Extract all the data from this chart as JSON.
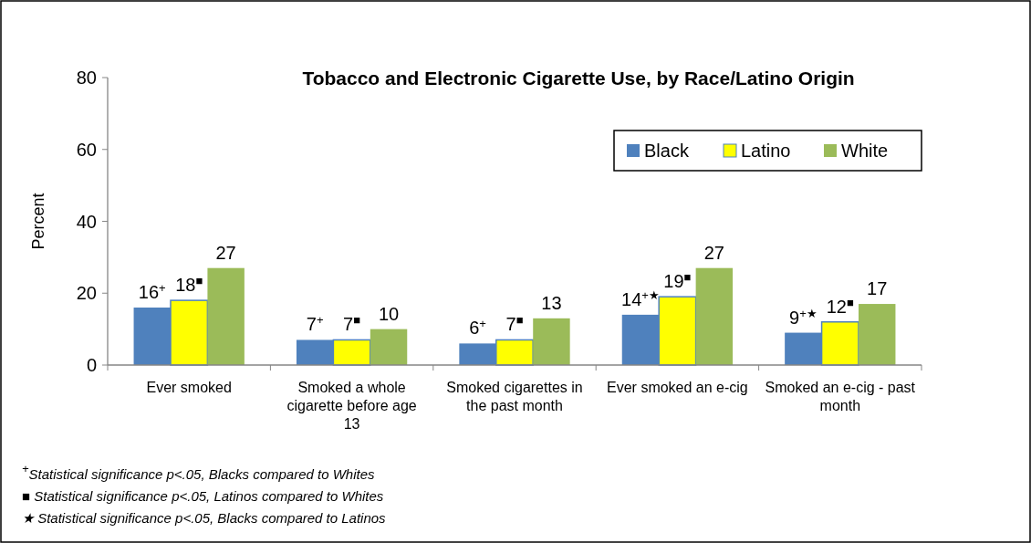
{
  "chart_data": {
    "type": "bar",
    "title": "Tobacco and Electronic Cigarette Use, by Race/Latino Origin",
    "ylabel": "Percent",
    "categories": [
      "Ever smoked",
      "Smoked a whole cigarette before age 13",
      "Smoked cigarettes in the past month",
      "Ever smoked an e-cig",
      "Smoked an e-cig - past month"
    ],
    "series": [
      {
        "name": "Black",
        "color": "#4f81bd",
        "values": [
          16,
          7,
          6,
          14,
          9
        ],
        "value_labels": [
          "16$^{+}$",
          "7$^{+}$",
          "6$^{+}$",
          "14$^{+★}$",
          "9$^{+★}$"
        ]
      },
      {
        "name": "Latino",
        "color": "#ffff00",
        "values": [
          18,
          7,
          7,
          19,
          12
        ],
        "value_labels": [
          "18$^{■}$",
          "7$^{■}$",
          "7$^{■}$",
          "19$^{■}$",
          "12$^{■}$"
        ]
      },
      {
        "name": "White",
        "color": "#9bbb59",
        "values": [
          27,
          10,
          13,
          27,
          17
        ],
        "value_labels": [
          "27",
          "10",
          "13",
          "27",
          "17"
        ]
      }
    ],
    "ylim": [
      0,
      80
    ],
    "yticks": [
      0,
      20,
      40,
      60,
      80
    ],
    "grid": false,
    "legend": "top right",
    "annotations": [
      "$^{+}$Statistical significance p<.05, Blacks compared to Whites",
      "■ Statistical significance p<.05, Latinos compared to Whites",
      "★ Statistical significance p<.05, Blacks compared to Latinos"
    ]
  }
}
